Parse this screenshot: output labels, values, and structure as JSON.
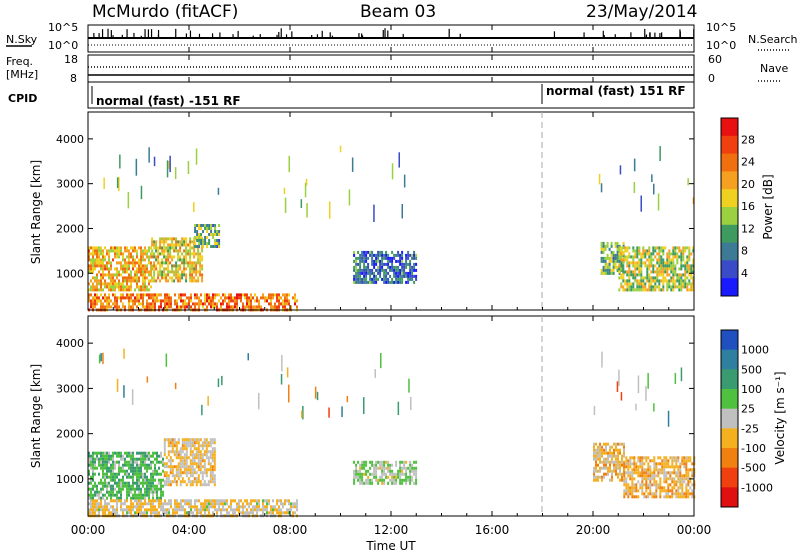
{
  "header": {
    "station": "McMurdo (fitACF)",
    "beam": "Beam 03",
    "date": "23/May/2014"
  },
  "noise_panel": {
    "left_label": "N.Sky",
    "right_label": "N.Search",
    "left_ticks": [
      "10^5",
      "10^0"
    ],
    "right_ticks": [
      "10^5",
      "10^0"
    ]
  },
  "freq_panel": {
    "left_label_line1": "Freq.",
    "left_label_line2": "[MHz]",
    "right_label": "Nave",
    "left_ticks": [
      "18",
      "8"
    ],
    "right_ticks": [
      "60",
      "0"
    ]
  },
  "cpid_panel": {
    "label": "CPID",
    "segments": [
      {
        "label": "normal (fast) -151 RF",
        "start_hour": 0
      },
      {
        "label": "normal (fast) 151 RF",
        "start_hour": 18
      }
    ]
  },
  "x_axis": {
    "title": "Time UT",
    "ticks": [
      "00:00",
      "04:00",
      "08:00",
      "12:00",
      "16:00",
      "20:00",
      "00:00"
    ],
    "range_hours": [
      0,
      24
    ]
  },
  "chart_data": [
    {
      "type": "heatmap",
      "title": "",
      "xlabel": "Time UT",
      "ylabel": "Slant Range [km]",
      "ylim": [
        180,
        4600
      ],
      "yticks": [
        1000,
        2000,
        3000,
        4000
      ],
      "colorbar": {
        "title": "Power [dB]",
        "ticks": [
          "4",
          "8",
          "12",
          "16",
          "20",
          "24",
          "28"
        ],
        "colors": [
          "#1a1aff",
          "#3a4bc8",
          "#3c7a96",
          "#3f9a5f",
          "#9bd040",
          "#f0d020",
          "#f5a020",
          "#f07010",
          "#f04010",
          "#e81010"
        ]
      },
      "echo_regions": [
        {
          "t": [
            0.0,
            2.5
          ],
          "r": [
            600,
            1600
          ],
          "value": 20
        },
        {
          "t": [
            2.5,
            4.5
          ],
          "r": [
            800,
            1800
          ],
          "value": 18
        },
        {
          "t": [
            4.2,
            5.2
          ],
          "r": [
            1600,
            2100
          ],
          "value": 12
        },
        {
          "t": [
            0.0,
            8.3
          ],
          "r": [
            200,
            550
          ],
          "value": 24
        },
        {
          "t": [
            10.5,
            13.0
          ],
          "r": [
            800,
            1500
          ],
          "value": 6
        },
        {
          "t": [
            20.3,
            21.2
          ],
          "r": [
            1000,
            1700
          ],
          "value": 12
        },
        {
          "t": [
            21.0,
            24.0
          ],
          "r": [
            600,
            1600
          ],
          "value": 16
        }
      ]
    },
    {
      "type": "heatmap",
      "title": "",
      "xlabel": "Time UT",
      "ylabel": "Slant Range [km]",
      "ylim": [
        180,
        4600
      ],
      "yticks": [
        1000,
        2000,
        3000,
        4000
      ],
      "colorbar": {
        "title": "Velocity [m s⁻¹]",
        "ticks": [
          "1000",
          "500",
          "100",
          "25",
          "-25",
          "-100",
          "-500",
          "-1000"
        ],
        "colors": [
          "#2050c0",
          "#2f7fa0",
          "#3a9a70",
          "#50c040",
          "#c0c0c0",
          "#f5b020",
          "#f08010",
          "#f04010",
          "#e01010"
        ]
      },
      "echo_regions": [
        {
          "t": [
            0.0,
            3.0
          ],
          "r": [
            600,
            1600
          ],
          "value": 300
        },
        {
          "t": [
            3.0,
            5.0
          ],
          "r": [
            900,
            1900
          ],
          "value": -150
        },
        {
          "t": [
            0.0,
            8.3
          ],
          "r": [
            200,
            550
          ],
          "value": -100
        },
        {
          "t": [
            10.5,
            13.0
          ],
          "r": [
            900,
            1400
          ],
          "value": 100
        },
        {
          "t": [
            20.0,
            21.2
          ],
          "r": [
            1000,
            1800
          ],
          "value": -200
        },
        {
          "t": [
            21.2,
            24.0
          ],
          "r": [
            600,
            1500
          ],
          "value": -250
        }
      ]
    }
  ]
}
